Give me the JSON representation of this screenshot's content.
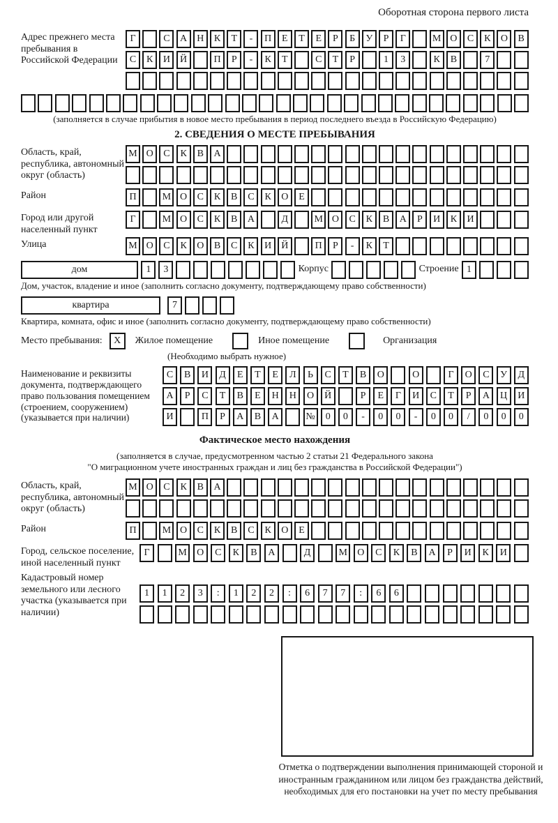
{
  "header": {
    "back_side_note": "Оборотная сторона первого листа"
  },
  "section1": {
    "prev_address": {
      "label": "Адрес прежнего места пребывания в Российской Федерации",
      "grid": {
        "cols": 24,
        "rows": [
          "Г САНКТ-ПЕТЕРБУРГ МОСКОВ",
          "СКИЙ ПР-КТ СТР 13 КВ 7",
          ""
        ]
      },
      "extra_grid": {
        "cols": 30,
        "rows": [
          ""
        ]
      },
      "caption": "(заполняется в случае прибытия в новое место пребывания в период последнего въезда в Российскую Федерацию)"
    },
    "title": "2. СВЕДЕНИЯ О МЕСТЕ ПРЕБЫВАНИЯ",
    "region": {
      "label": "Область, край, республика, автономный округ (область)",
      "grid": {
        "cols": 24,
        "rows": [
          "МОСКВА",
          ""
        ]
      }
    },
    "district": {
      "label": "Район",
      "grid": {
        "cols": 24,
        "rows": [
          "П МОСКВСКОЕ"
        ]
      }
    },
    "city": {
      "label": "Город или другой населенный пункт",
      "grid": {
        "cols": 24,
        "rows": [
          "Г МОСКВА Д МОСКВАРИКИ"
        ]
      }
    },
    "street": {
      "label": "Улица",
      "grid": {
        "cols": 24,
        "rows": [
          "МОСКОВСКИЙ ПР-КТ"
        ]
      }
    },
    "house": {
      "box_label": "дом",
      "grid": {
        "cols": 9,
        "rows": [
          "13"
        ]
      },
      "korpus_label": "Корпус",
      "korpus_grid": {
        "cols": 5,
        "rows": [
          ""
        ]
      },
      "stroenie_label": "Строение",
      "stroenie_grid": {
        "cols": 4,
        "rows": [
          "1"
        ]
      },
      "caption": "Дом, участок, владение и иное (заполнить согласно документу, подтверждающему право собственности)"
    },
    "apartment": {
      "box_label": "квартира",
      "grid": {
        "cols": 4,
        "rows": [
          "7"
        ]
      },
      "caption": "Квартира, комната, офис и иное (заполнить согласно документу, подтверждающему право собственности)"
    },
    "place_type": {
      "label": "Место пребывания:",
      "options": [
        {
          "label": "Жилое помещение",
          "mark": "X"
        },
        {
          "label": "Иное помещение",
          "mark": ""
        },
        {
          "label": "Организация",
          "mark": ""
        }
      ],
      "caption": "(Необходимо выбрать нужное)"
    },
    "document": {
      "label": "Наименование и реквизиты документа, подтверждающего право пользования помещением (строением, сооружением) (указывается при наличии)",
      "grid": {
        "cols": 21,
        "rows": [
          "СВИДЕТЕЛЬСТВО О ГОСУД",
          "АРСТВЕННОЙ РЕГИСТРАЦИ",
          "И ПРАВА №00-00-00/000"
        ]
      }
    }
  },
  "section_actual": {
    "title": "Фактическое место нахождения",
    "caption_line1": "(заполняется в случае, предусмотренном частью 2 статьи 21 Федерального закона",
    "caption_line2": "\"О миграционном учете иностранных граждан и лиц без гражданства в Российской Федерации\")",
    "region": {
      "label": "Область, край, республика, автономный округ (область)",
      "grid": {
        "cols": 24,
        "rows": [
          "МОСКВА",
          ""
        ]
      }
    },
    "district": {
      "label": "Район",
      "grid": {
        "cols": 24,
        "rows": [
          "П МОСКВСКОЕ"
        ]
      }
    },
    "city": {
      "label": "Город, сельское поселение, иной населенный пункт",
      "grid": {
        "cols": 22,
        "rows": [
          "Г МОСКВА Д МОСКВАРИКИ"
        ]
      }
    },
    "cadastral": {
      "label": "Кадастровый номер земельного или лесного участка (указывается при наличии)",
      "grid": {
        "cols": 22,
        "rows": [
          "1123:122:677:66",
          ""
        ]
      }
    },
    "stamp_caption": "Отметка о подтверждении выполнения принимающей стороной и иностранным гражданином или лицом без гражданства действий, необходимых для его постановки на учет по месту пребывания"
  }
}
